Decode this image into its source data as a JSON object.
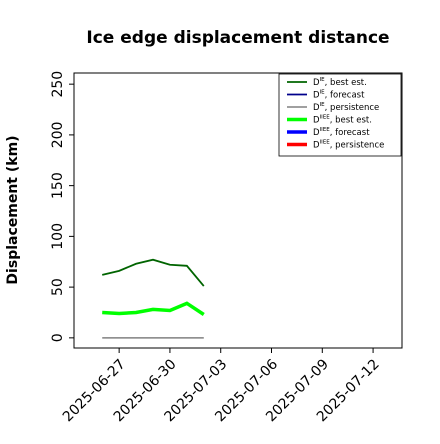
{
  "chart_data": {
    "type": "line",
    "title": "Ice edge displacement distance",
    "ylabel": "Displacement (km)",
    "x": [
      "2025-06-26",
      "2025-06-27",
      "2025-06-28",
      "2025-06-29",
      "2025-06-30",
      "2025-07-01",
      "2025-07-02"
    ],
    "series": [
      {
        "name": {
          "base": "D",
          "sup": "IE",
          "text": ", best est."
        },
        "color": "#006400",
        "width": 1.8,
        "values": [
          62,
          66,
          73,
          77,
          72,
          71,
          51
        ]
      },
      {
        "name": {
          "base": "D",
          "sup": "IE",
          "text": ", forecast"
        },
        "color": "#00008b",
        "width": 1.8,
        "values": [
          null,
          null,
          null,
          null,
          null,
          null,
          null
        ]
      },
      {
        "name": {
          "base": "D",
          "sup": "IE",
          "text": ", persistence"
        },
        "color": "#808080",
        "width": 1.5,
        "values": [
          0,
          0,
          0,
          0,
          0,
          0,
          0
        ]
      },
      {
        "name": {
          "base": "D",
          "sup": "IIEE",
          "text": ", best est."
        },
        "color": "#00ff00",
        "width": 3.5,
        "values": [
          25,
          24,
          25,
          28,
          27,
          34,
          23
        ]
      },
      {
        "name": {
          "base": "D",
          "sup": "IIEE",
          "text": ", forecast"
        },
        "color": "#0000ff",
        "width": 3.5,
        "values": [
          null,
          null,
          null,
          null,
          null,
          null,
          null
        ]
      },
      {
        "name": {
          "base": "D",
          "sup": "IIEE",
          "text": ", persistence"
        },
        "color": "#ff0000",
        "width": 3.5,
        "values": [
          null,
          null,
          null,
          null,
          null,
          null,
          null
        ]
      }
    ],
    "xlim": [
      "2025-06-24T08:00",
      "2025-07-13T17:00"
    ],
    "xticks": [
      "2025-06-27",
      "2025-06-30",
      "2025-07-03",
      "2025-07-06",
      "2025-07-09",
      "2025-07-12"
    ],
    "xtick_highlight": {
      "index": 2,
      "color": "#228b22"
    },
    "ylim": [
      -10,
      261
    ],
    "yticks": [
      0,
      50,
      100,
      150,
      200,
      250
    ],
    "legend": "upper right"
  }
}
